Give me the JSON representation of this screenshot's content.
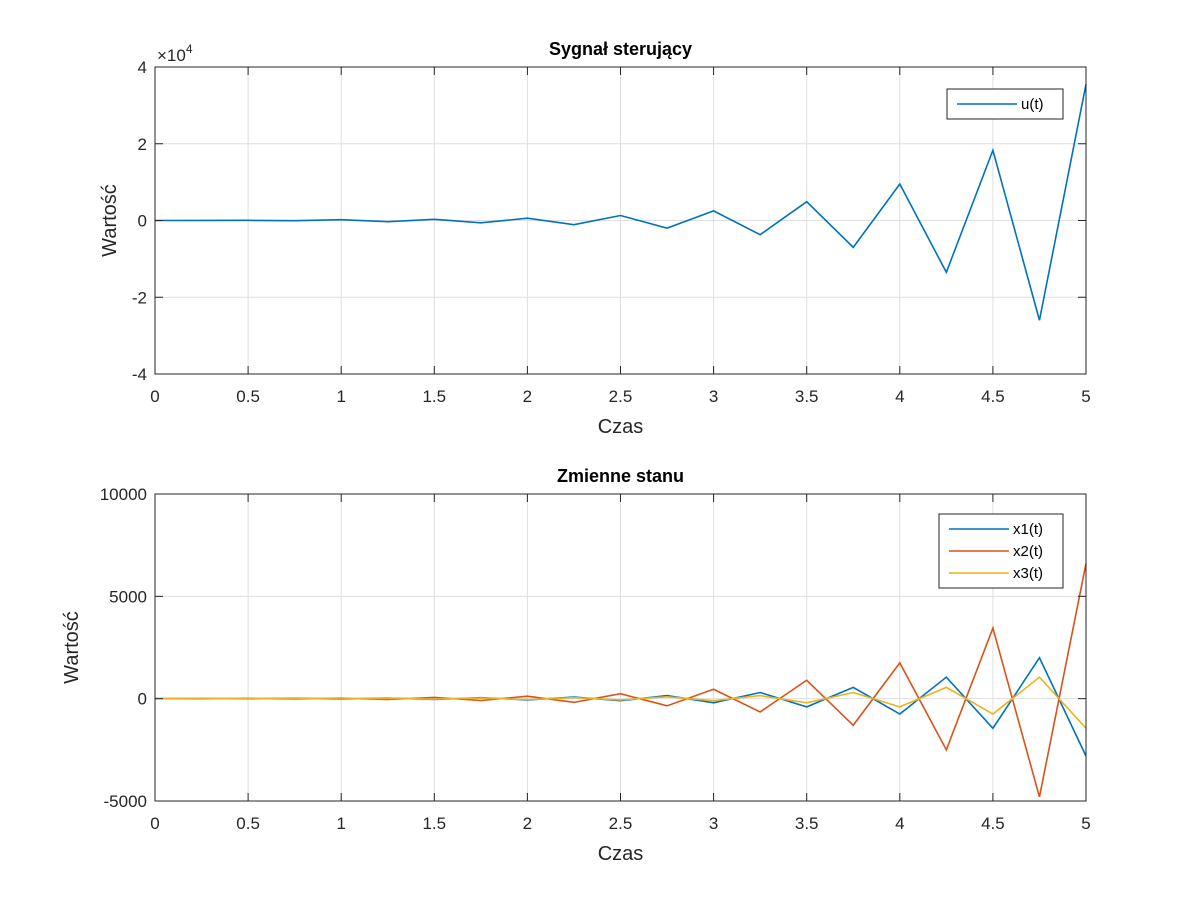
{
  "chart_data": [
    {
      "type": "line",
      "title": "Sygnał sterujący",
      "xlabel": "Czas",
      "ylabel": "Wartość",
      "xlim": [
        0,
        5
      ],
      "ylim": [
        -40000,
        40000
      ],
      "x_ticks": [
        0,
        0.5,
        1,
        1.5,
        2,
        2.5,
        3,
        3.5,
        4,
        4.5,
        5
      ],
      "x_tick_labels": [
        "0",
        "0.5",
        "1",
        "1.5",
        "2",
        "2.5",
        "3",
        "3.5",
        "4",
        "4.5",
        "5"
      ],
      "y_ticks": [
        -40000,
        -20000,
        0,
        20000,
        40000
      ],
      "y_tick_labels": [
        "-4",
        "-2",
        "0",
        "2",
        "4"
      ],
      "y_exponent_base": "×10",
      "y_exponent_power": "4",
      "grid": true,
      "legend_position": "top-right",
      "x": [
        0,
        0.25,
        0.5,
        0.75,
        1,
        1.25,
        1.5,
        1.75,
        2,
        2.25,
        2.5,
        2.75,
        3,
        3.25,
        3.5,
        3.75,
        4,
        4.25,
        4.5,
        4.75,
        5
      ],
      "series": [
        {
          "name": "u(t)",
          "color": "#0072BD",
          "values": [
            0,
            20,
            40,
            -50,
            200,
            -300,
            300,
            -600,
            600,
            -1100,
            1300,
            -2000,
            2500,
            -3700,
            4900,
            -7000,
            9500,
            -13500,
            18300,
            -26000,
            35500
          ]
        }
      ]
    },
    {
      "type": "line",
      "title": "Zmienne stanu",
      "xlabel": "Czas",
      "ylabel": "Wartość",
      "xlim": [
        0,
        5
      ],
      "ylim": [
        -5000,
        10000
      ],
      "x_ticks": [
        0,
        0.5,
        1,
        1.5,
        2,
        2.5,
        3,
        3.5,
        4,
        4.5,
        5
      ],
      "x_tick_labels": [
        "0",
        "0.5",
        "1",
        "1.5",
        "2",
        "2.5",
        "3",
        "3.5",
        "4",
        "4.5",
        "5"
      ],
      "y_ticks": [
        -5000,
        0,
        5000,
        10000
      ],
      "y_tick_labels": [
        "-5000",
        "0",
        "5000",
        "10000"
      ],
      "grid": true,
      "legend_position": "top-right",
      "x": [
        0,
        0.25,
        0.5,
        0.75,
        1,
        1.25,
        1.5,
        1.75,
        2,
        2.25,
        2.5,
        2.75,
        3,
        3.25,
        3.5,
        3.75,
        4,
        4.25,
        4.5,
        4.75,
        5
      ],
      "series": [
        {
          "name": "x1(t)",
          "color": "#0072BD",
          "values": [
            0,
            5,
            -10,
            15,
            -20,
            30,
            -40,
            50,
            -60,
            80,
            -100,
            150,
            -200,
            300,
            -400,
            550,
            -750,
            1050,
            -1450,
            2000,
            -2800
          ]
        },
        {
          "name": "x2(t)",
          "color": "#D95319",
          "values": [
            0,
            -5,
            10,
            -15,
            20,
            -40,
            60,
            -90,
            120,
            -180,
            240,
            -350,
            460,
            -650,
            900,
            -1300,
            1750,
            -2500,
            3450,
            -4800,
            6600
          ]
        },
        {
          "name": "x3(t)",
          "color": "#EDB120",
          "values": [
            0,
            3,
            -5,
            8,
            -10,
            15,
            -20,
            30,
            -40,
            50,
            -60,
            90,
            -100,
            150,
            -200,
            300,
            -400,
            550,
            -750,
            1050,
            -1450
          ]
        }
      ]
    }
  ]
}
